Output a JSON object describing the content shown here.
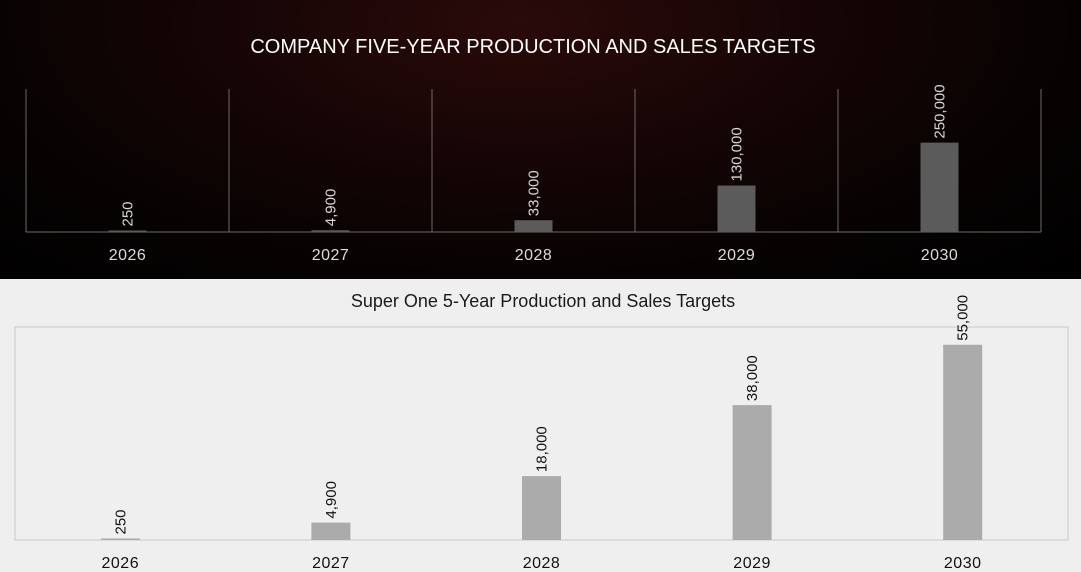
{
  "colors": {
    "top_bar": "#5b5b5b",
    "bottom_bar": "#ababab",
    "top_grid": "#6a6a6a",
    "bottom_frame": "#c8c8c8"
  },
  "chart_data": [
    {
      "type": "bar",
      "title": "COMPANY FIVE-YEAR PRODUCTION AND SALES TARGETS",
      "categories": [
        "2026",
        "2027",
        "2028",
        "2029",
        "2030"
      ],
      "values": [
        250,
        4900,
        33000,
        130000,
        250000
      ],
      "value_labels": [
        "250",
        "4,900",
        "33,000",
        "130,000",
        "250,000"
      ],
      "ylim": [
        0,
        400000
      ],
      "xlabel": "",
      "ylabel": "",
      "grid": "vertical separators",
      "legend": "none"
    },
    {
      "type": "bar",
      "title": "Super One 5-Year Production and Sales Targets",
      "categories": [
        "2026",
        "2027",
        "2028",
        "2029",
        "2030"
      ],
      "values": [
        250,
        4900,
        18000,
        38000,
        55000
      ],
      "value_labels": [
        "250",
        "4,900",
        "18,000",
        "38,000",
        "55,000"
      ],
      "ylim": [
        0,
        60000
      ],
      "xlabel": "",
      "ylabel": "",
      "grid": "off",
      "legend": "none"
    }
  ]
}
